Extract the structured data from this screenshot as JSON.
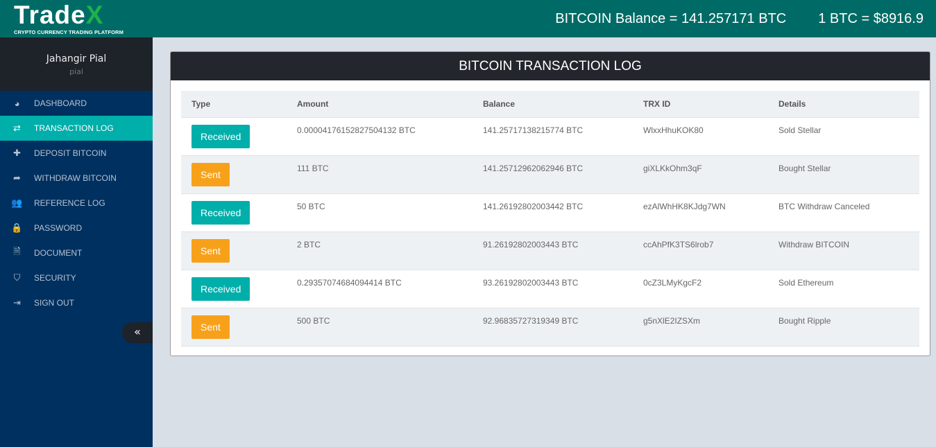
{
  "header": {
    "logo_main": "Trade",
    "logo_accent": "X",
    "logo_tagline": "CRYPTO CURRENCY TRADING PLATFORM",
    "balance": "BITCOIN Balance = 141.257171 BTC",
    "rate": "1 BTC = $8916.9"
  },
  "profile": {
    "name": "Jahangir Pial",
    "username": "pial"
  },
  "sidebar": {
    "items": [
      {
        "label": "DASHBOARD",
        "icon": "tachometer-icon",
        "glyph": "◕"
      },
      {
        "label": "TRANSACTION LOG",
        "icon": "exchange-icon",
        "glyph": "⇄",
        "active": true
      },
      {
        "label": "DEPOSIT BITCOIN",
        "icon": "plus-icon",
        "glyph": "✚"
      },
      {
        "label": "WITHDRAW BITCOIN",
        "icon": "share-icon",
        "glyph": "➦"
      },
      {
        "label": "REFERENCE LOG",
        "icon": "users-icon",
        "glyph": "👥"
      },
      {
        "label": "PASSWORD",
        "icon": "lock-icon",
        "glyph": "🔒"
      },
      {
        "label": "DOCUMENT",
        "icon": "file-icon",
        "glyph": "🗎"
      },
      {
        "label": "SECURITY",
        "icon": "shield-icon",
        "glyph": "⛉"
      },
      {
        "label": "SIGN OUT",
        "icon": "sign-out-icon",
        "glyph": "⇥"
      }
    ],
    "collapse_glyph": "«"
  },
  "panel": {
    "title": "BITCOIN TRANSACTION LOG",
    "columns": [
      "Type",
      "Amount",
      "Balance",
      "TRX ID",
      "Details"
    ],
    "rows": [
      {
        "type": "Received",
        "amount": "0.00004176152827504132 BTC",
        "balance": "141.25717138215774 BTC",
        "trx": "WlxxHhuKOK80",
        "details": "Sold Stellar"
      },
      {
        "type": "Sent",
        "amount": "111 BTC",
        "balance": "141.25712962062946 BTC",
        "trx": "giXLKkOhm3qF",
        "details": "Bought Stellar"
      },
      {
        "type": "Received",
        "amount": "50 BTC",
        "balance": "141.26192802003442 BTC",
        "trx": "ezAlWhHK8KJdg7WN",
        "details": "BTC Withdraw Canceled"
      },
      {
        "type": "Sent",
        "amount": "2 BTC",
        "balance": "91.26192802003443 BTC",
        "trx": "ccAhPfK3TS6lrob7",
        "details": "Withdraw BITCOIN"
      },
      {
        "type": "Received",
        "amount": "0.29357074684094414 BTC",
        "balance": "93.26192802003443 BTC",
        "trx": "0cZ3LMyKgcF2",
        "details": "Sold Ethereum"
      },
      {
        "type": "Sent",
        "amount": "500 BTC",
        "balance": "92.96835727319349 BTC",
        "trx": "g5nXlE2IZSXm",
        "details": "Bought Ripple"
      }
    ]
  },
  "colors": {
    "header": "#006b66",
    "sidebar": "#00305f",
    "active": "#00aeaa",
    "received": "#00aeaa",
    "sent": "#f7a11a"
  }
}
